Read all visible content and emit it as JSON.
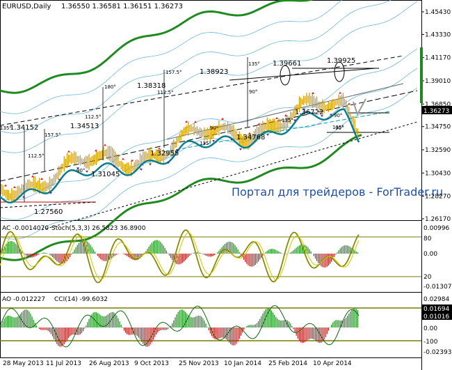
{
  "main": {
    "symbol": "EURUSD,Daily",
    "ohlc": "1.36550 1.36581 1.36151 1.36273",
    "current_price": "1.36273",
    "price_axis": [
      "1.45430",
      "1.43330",
      "1.41170",
      "1.39010",
      "1.36850",
      "1.34750",
      "1.32590",
      "1.30430",
      "1.28270",
      "1.26170"
    ],
    "price_axis_values": [
      1.4543,
      1.4333,
      1.4117,
      1.3901,
      1.3685,
      1.3475,
      1.3259,
      1.3043,
      1.2827,
      1.2617
    ],
    "price_markers": [
      {
        "text": "1.39661"
      },
      {
        "text": "1.39925"
      },
      {
        "text": "1.38923"
      },
      {
        "text": "1.38318"
      },
      {
        "text": "1.34513"
      },
      {
        "text": "1.34152"
      },
      {
        "text": "1.36722"
      },
      {
        "text": "1.34768"
      },
      {
        "text": "1.32955"
      },
      {
        "text": "1.31045"
      },
      {
        "text": "1.27560"
      }
    ],
    "angle_labels": [
      "135°",
      "157.5°",
      "180°",
      "112.5°",
      "90°",
      "135°",
      "157.5°",
      "112.5°",
      "135°",
      "90°",
      "90°",
      "135°",
      "90°",
      "90°",
      "135°",
      "112.5°"
    ],
    "watermark": "Портал для трейдеров - ForTrader.ru",
    "colors": {
      "price_bars": "#cc9900",
      "bands_outer": "#1f8a1f",
      "bands_inner": "#6fb6d9",
      "ma": "#0a7d8c",
      "fractal_up": "#e02020",
      "fractal_down": "#5a2a9a"
    }
  },
  "ac_panel": {
    "label": "AC -0.0014070",
    "stoch_label": "Stoch(5,3,3) 26.5823 36.8900",
    "axis": [
      "0.00996",
      "80",
      "0.00",
      "20",
      "-0.01307"
    ],
    "levels": [
      80,
      20
    ]
  },
  "ao_panel": {
    "label": "AO -0.012227",
    "cci_label": "CCI(14) -99.6032",
    "axis": [
      "0.02984",
      "0.01694",
      "0.01016",
      "0.00",
      "-100",
      "-0.02393"
    ]
  },
  "time_axis": [
    "28 May 2013",
    "11 Jul 2013",
    "26 Aug 2013",
    "9 Oct 2013",
    "25 Nov 2013",
    "10 Jan 2014",
    "25 Feb 2014",
    "10 Apr 2014"
  ]
}
